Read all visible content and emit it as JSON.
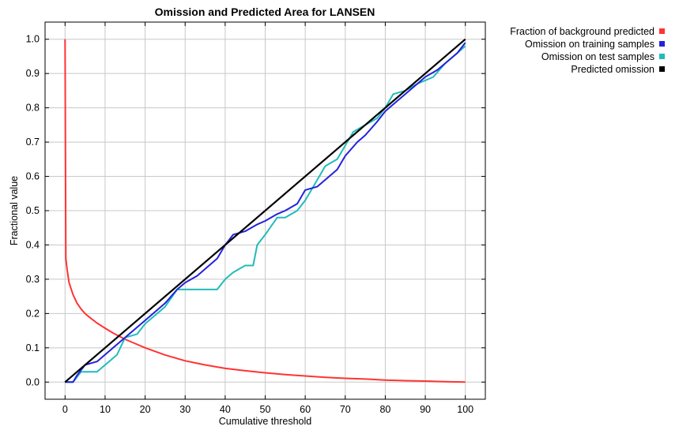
{
  "chart_data": {
    "type": "line",
    "title": "Omission and Predicted Area for LANSEN",
    "xlabel": "Cumulative threshold",
    "ylabel": "Fractional value",
    "xlim": [
      -5,
      105
    ],
    "ylim": [
      -0.05,
      1.05
    ],
    "xticks": [
      0,
      10,
      20,
      30,
      40,
      50,
      60,
      70,
      80,
      90,
      100
    ],
    "xtick_labels": [
      "0",
      "10",
      "20",
      "30",
      "40",
      "50",
      "60",
      "70",
      "80",
      "90",
      "100"
    ],
    "yticks": [
      0,
      0.1,
      0.2,
      0.3,
      0.4,
      0.5,
      0.6,
      0.7,
      0.8,
      0.9,
      1.0
    ],
    "ytick_labels": [
      "0.0",
      "0.1",
      "0.2",
      "0.3",
      "0.4",
      "0.5",
      "0.6",
      "0.7",
      "0.8",
      "0.9",
      "1.0"
    ],
    "grid": true,
    "legend_position": "outside-top-right",
    "series": [
      {
        "name": "Fraction of background predicted",
        "color": "#ff3333",
        "x": [
          0,
          0.2,
          0.5,
          1,
          2,
          3,
          4,
          5,
          6,
          8,
          10,
          12,
          15,
          18,
          20,
          25,
          30,
          35,
          40,
          45,
          50,
          55,
          60,
          65,
          70,
          75,
          80,
          85,
          90,
          95,
          100
        ],
        "y": [
          1.0,
          0.36,
          0.33,
          0.29,
          0.255,
          0.23,
          0.213,
          0.2,
          0.19,
          0.172,
          0.157,
          0.143,
          0.125,
          0.11,
          0.1,
          0.079,
          0.062,
          0.05,
          0.04,
          0.033,
          0.027,
          0.022,
          0.018,
          0.014,
          0.011,
          0.009,
          0.006,
          0.004,
          0.003,
          0.001,
          0.0
        ]
      },
      {
        "name": "Omission on training samples",
        "color": "#2222dd",
        "x": [
          0,
          2,
          3,
          5,
          8,
          10,
          12,
          15,
          18,
          20,
          25,
          28,
          30,
          33,
          35,
          38,
          40,
          42,
          45,
          48,
          50,
          53,
          55,
          58,
          60,
          63,
          65,
          68,
          70,
          73,
          75,
          78,
          80,
          83,
          85,
          88,
          90,
          93,
          95,
          98,
          100
        ],
        "y": [
          0.0,
          0.0,
          0.02,
          0.05,
          0.06,
          0.08,
          0.1,
          0.13,
          0.16,
          0.18,
          0.23,
          0.27,
          0.29,
          0.31,
          0.33,
          0.36,
          0.4,
          0.43,
          0.44,
          0.46,
          0.47,
          0.49,
          0.5,
          0.52,
          0.56,
          0.57,
          0.59,
          0.62,
          0.66,
          0.7,
          0.72,
          0.76,
          0.79,
          0.82,
          0.84,
          0.87,
          0.89,
          0.91,
          0.93,
          0.96,
          0.99
        ]
      },
      {
        "name": "Omission on test samples",
        "color": "#22bbbb",
        "x": [
          0,
          2,
          4,
          5,
          8,
          10,
          12,
          13,
          15,
          18,
          20,
          25,
          28,
          30,
          35,
          38,
          40,
          42,
          45,
          47,
          48,
          50,
          53,
          55,
          58,
          60,
          62,
          65,
          68,
          70,
          72,
          75,
          78,
          80,
          82,
          85,
          88,
          90,
          92,
          95,
          98,
          100
        ],
        "y": [
          0.0,
          0.0,
          0.03,
          0.03,
          0.03,
          0.05,
          0.07,
          0.08,
          0.13,
          0.14,
          0.17,
          0.22,
          0.27,
          0.27,
          0.27,
          0.27,
          0.3,
          0.32,
          0.34,
          0.34,
          0.4,
          0.43,
          0.48,
          0.48,
          0.5,
          0.53,
          0.57,
          0.63,
          0.65,
          0.69,
          0.73,
          0.75,
          0.77,
          0.8,
          0.84,
          0.85,
          0.87,
          0.88,
          0.89,
          0.93,
          0.96,
          0.98
        ]
      },
      {
        "name": "Predicted omission",
        "color": "#000000",
        "x": [
          0,
          100
        ],
        "y": [
          0.0,
          1.0
        ]
      }
    ]
  }
}
